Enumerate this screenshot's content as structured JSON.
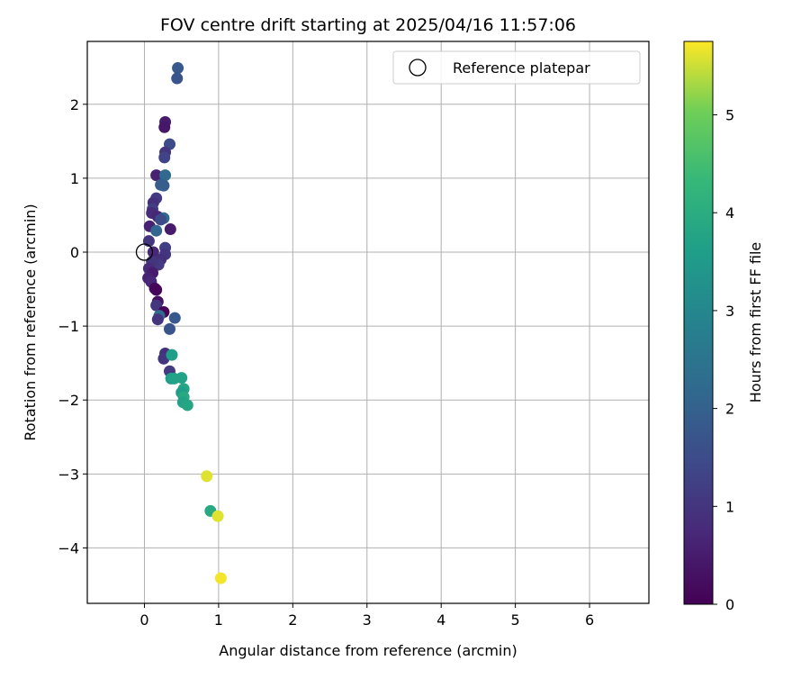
{
  "chart_data": {
    "type": "scatter",
    "title": "FOV centre drift starting at 2025/04/16 11:57:06",
    "xlabel": "Angular distance from reference (arcmin)",
    "ylabel": "Rotation from reference (arcmin)",
    "xlim": [
      -0.77,
      6.8
    ],
    "ylim": [
      -4.75,
      2.85
    ],
    "xticks": [
      0,
      1,
      2,
      3,
      4,
      5,
      6
    ],
    "yticks": [
      -4,
      -3,
      -2,
      -1,
      0,
      1,
      2
    ],
    "grid": true,
    "legend": {
      "position": "top-right",
      "entries": [
        "Reference platepar"
      ]
    },
    "reference_point": {
      "x": 0,
      "y": 0,
      "label": "Reference platepar"
    },
    "colorbar": {
      "label": "Hours from first FF file",
      "range": [
        0,
        5.75
      ],
      "ticks": [
        0,
        1,
        2,
        3,
        4,
        5
      ],
      "colormap": "viridis"
    },
    "points": [
      {
        "x": 0.45,
        "y": 2.49,
        "c": 1.8
      },
      {
        "x": 0.44,
        "y": 2.35,
        "c": 1.7
      },
      {
        "x": 0.28,
        "y": 1.76,
        "c": 0.5
      },
      {
        "x": 0.27,
        "y": 1.69,
        "c": 0.4
      },
      {
        "x": 0.34,
        "y": 1.46,
        "c": 1.5
      },
      {
        "x": 0.28,
        "y": 1.35,
        "c": 1.0
      },
      {
        "x": 0.27,
        "y": 1.28,
        "c": 1.3
      },
      {
        "x": 0.16,
        "y": 1.04,
        "c": 0.6
      },
      {
        "x": 0.28,
        "y": 1.04,
        "c": 2.2
      },
      {
        "x": 0.22,
        "y": 0.91,
        "c": 1.9
      },
      {
        "x": 0.26,
        "y": 0.9,
        "c": 1.9
      },
      {
        "x": 0.16,
        "y": 0.73,
        "c": 1.1
      },
      {
        "x": 0.12,
        "y": 0.67,
        "c": 0.9
      },
      {
        "x": 0.11,
        "y": 0.58,
        "c": 1.2
      },
      {
        "x": 0.1,
        "y": 0.53,
        "c": 0.8
      },
      {
        "x": 0.18,
        "y": 0.48,
        "c": 0.7
      },
      {
        "x": 0.26,
        "y": 0.46,
        "c": 2.2
      },
      {
        "x": 0.22,
        "y": 0.44,
        "c": 1.5
      },
      {
        "x": 0.07,
        "y": 0.35,
        "c": 0.6
      },
      {
        "x": 0.35,
        "y": 0.31,
        "c": 0.5
      },
      {
        "x": 0.16,
        "y": 0.29,
        "c": 2.1
      },
      {
        "x": 0.06,
        "y": 0.15,
        "c": 1.0
      },
      {
        "x": 0.28,
        "y": 0.06,
        "c": 1.2
      },
      {
        "x": 0.28,
        "y": -0.03,
        "c": 1.0
      },
      {
        "x": 0.12,
        "y": 0.0,
        "c": 0.7
      },
      {
        "x": 0.22,
        "y": -0.1,
        "c": 0.9
      },
      {
        "x": 0.19,
        "y": -0.17,
        "c": 1.1
      },
      {
        "x": 0.1,
        "y": -0.13,
        "c": 1.0
      },
      {
        "x": 0.06,
        "y": -0.22,
        "c": 0.8
      },
      {
        "x": 0.11,
        "y": -0.28,
        "c": 0.5
      },
      {
        "x": 0.05,
        "y": -0.35,
        "c": 0.6
      },
      {
        "x": 0.09,
        "y": -0.4,
        "c": 0.7
      },
      {
        "x": 0.14,
        "y": -0.49,
        "c": 0.2
      },
      {
        "x": 0.16,
        "y": -0.51,
        "c": 0.1
      },
      {
        "x": 0.18,
        "y": -0.67,
        "c": 0.3
      },
      {
        "x": 0.16,
        "y": -0.72,
        "c": 1.0
      },
      {
        "x": 0.26,
        "y": -0.81,
        "c": 0.1
      },
      {
        "x": 0.2,
        "y": -0.86,
        "c": 2.3
      },
      {
        "x": 0.18,
        "y": -0.91,
        "c": 1.0
      },
      {
        "x": 0.41,
        "y": -0.89,
        "c": 1.8
      },
      {
        "x": 0.34,
        "y": -1.04,
        "c": 1.7
      },
      {
        "x": 0.28,
        "y": -1.37,
        "c": 0.9
      },
      {
        "x": 0.26,
        "y": -1.44,
        "c": 1.0
      },
      {
        "x": 0.37,
        "y": -1.39,
        "c": 3.6
      },
      {
        "x": 0.34,
        "y": -1.61,
        "c": 1.1
      },
      {
        "x": 0.36,
        "y": -1.71,
        "c": 3.6
      },
      {
        "x": 0.4,
        "y": -1.71,
        "c": 3.7
      },
      {
        "x": 0.5,
        "y": -1.7,
        "c": 3.7
      },
      {
        "x": 0.53,
        "y": -1.85,
        "c": 3.8
      },
      {
        "x": 0.5,
        "y": -1.9,
        "c": 3.6
      },
      {
        "x": 0.53,
        "y": -1.96,
        "c": 3.9
      },
      {
        "x": 0.52,
        "y": -2.03,
        "c": 3.7
      },
      {
        "x": 0.58,
        "y": -2.07,
        "c": 3.8
      },
      {
        "x": 0.84,
        "y": -3.03,
        "c": 5.6
      },
      {
        "x": 0.89,
        "y": -3.5,
        "c": 3.9
      },
      {
        "x": 0.99,
        "y": -3.57,
        "c": 5.6
      },
      {
        "x": 1.03,
        "y": -4.41,
        "c": 5.7
      }
    ]
  }
}
